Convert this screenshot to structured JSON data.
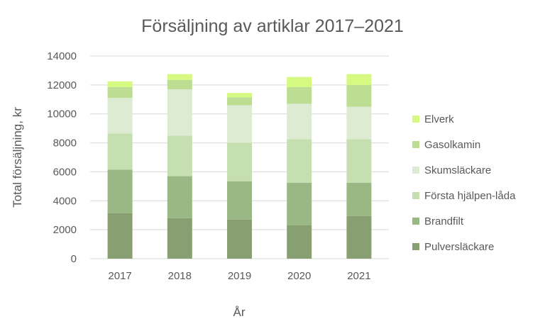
{
  "chart_data": {
    "type": "bar",
    "stacked": true,
    "title": "Försäljning av artiklar 2017–2021",
    "xlabel": "År",
    "ylabel": "Total försäljning, kr",
    "categories": [
      "2017",
      "2018",
      "2019",
      "2020",
      "2021"
    ],
    "ylim": [
      0,
      14000
    ],
    "yticks": [
      0,
      2000,
      4000,
      6000,
      8000,
      10000,
      12000,
      14000
    ],
    "grid": true,
    "legend_position": "right",
    "series": [
      {
        "name": "Pulversläckare",
        "color": "#889F72",
        "values": [
          3150,
          2800,
          2700,
          2300,
          2950
        ]
      },
      {
        "name": "Brandfilt",
        "color": "#99B883",
        "values": [
          3000,
          2900,
          2650,
          2950,
          2300
        ]
      },
      {
        "name": "Första hjälpen-låda",
        "color": "#C6DFB1",
        "values": [
          2500,
          2800,
          2650,
          3000,
          3000
        ]
      },
      {
        "name": "Skumsläckare",
        "color": "#DCEBD1",
        "values": [
          2450,
          3200,
          2600,
          2450,
          2250
        ]
      },
      {
        "name": "Gasolkamin",
        "color": "#BCDD92",
        "values": [
          750,
          650,
          550,
          1150,
          1500
        ]
      },
      {
        "name": "Elverk",
        "color": "#D6FA81",
        "values": [
          400,
          400,
          300,
          700,
          750
        ]
      }
    ]
  }
}
